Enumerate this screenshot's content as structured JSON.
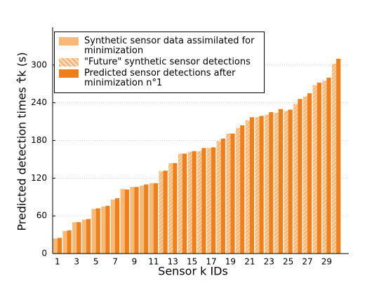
{
  "chart_data": {
    "type": "bar",
    "xlabel": "Sensor k IDs",
    "ylabel": "Predicted detection times τ̂k (s)",
    "categories": [
      1,
      null,
      3,
      null,
      5,
      null,
      7,
      null,
      9,
      null,
      11,
      null,
      13,
      null,
      15,
      null,
      17,
      null,
      19,
      null,
      21,
      null,
      23,
      null,
      25,
      null,
      27,
      null,
      29,
      null
    ],
    "series": [
      {
        "name": "Synthetic sensor data assimilated for minimization",
        "color": "#f8b878",
        "hatch": false,
        "values": [
          24,
          36,
          50,
          54,
          71,
          75,
          86,
          103,
          106,
          108,
          112,
          null,
          null,
          null,
          null,
          null,
          null,
          null,
          null,
          null,
          null,
          null,
          null,
          null,
          null,
          null,
          null,
          null,
          null,
          null
        ]
      },
      {
        "name": "\"Future\" synthetic sensor detections",
        "color": "#f8b878",
        "hatch": true,
        "values": [
          null,
          null,
          null,
          null,
          null,
          null,
          null,
          null,
          null,
          null,
          null,
          131,
          144,
          159,
          162,
          163,
          168,
          179,
          191,
          200,
          212,
          217,
          221,
          224,
          227,
          238,
          250,
          268,
          275,
          302
        ]
      },
      {
        "name": "Predicted sensor detections after minimization n°1",
        "color": "#f07f1a",
        "hatch": false,
        "values": [
          25,
          37,
          50,
          55,
          72,
          76,
          88,
          102,
          106,
          110,
          112,
          132,
          144,
          159,
          163,
          168,
          169,
          183,
          191,
          204,
          217,
          219,
          225,
          230,
          229,
          246,
          255,
          272,
          280,
          310
        ]
      }
    ],
    "ylim": [
      0,
      360
    ],
    "yticks": [
      0,
      60,
      120,
      180,
      240,
      300
    ],
    "grid": true
  }
}
